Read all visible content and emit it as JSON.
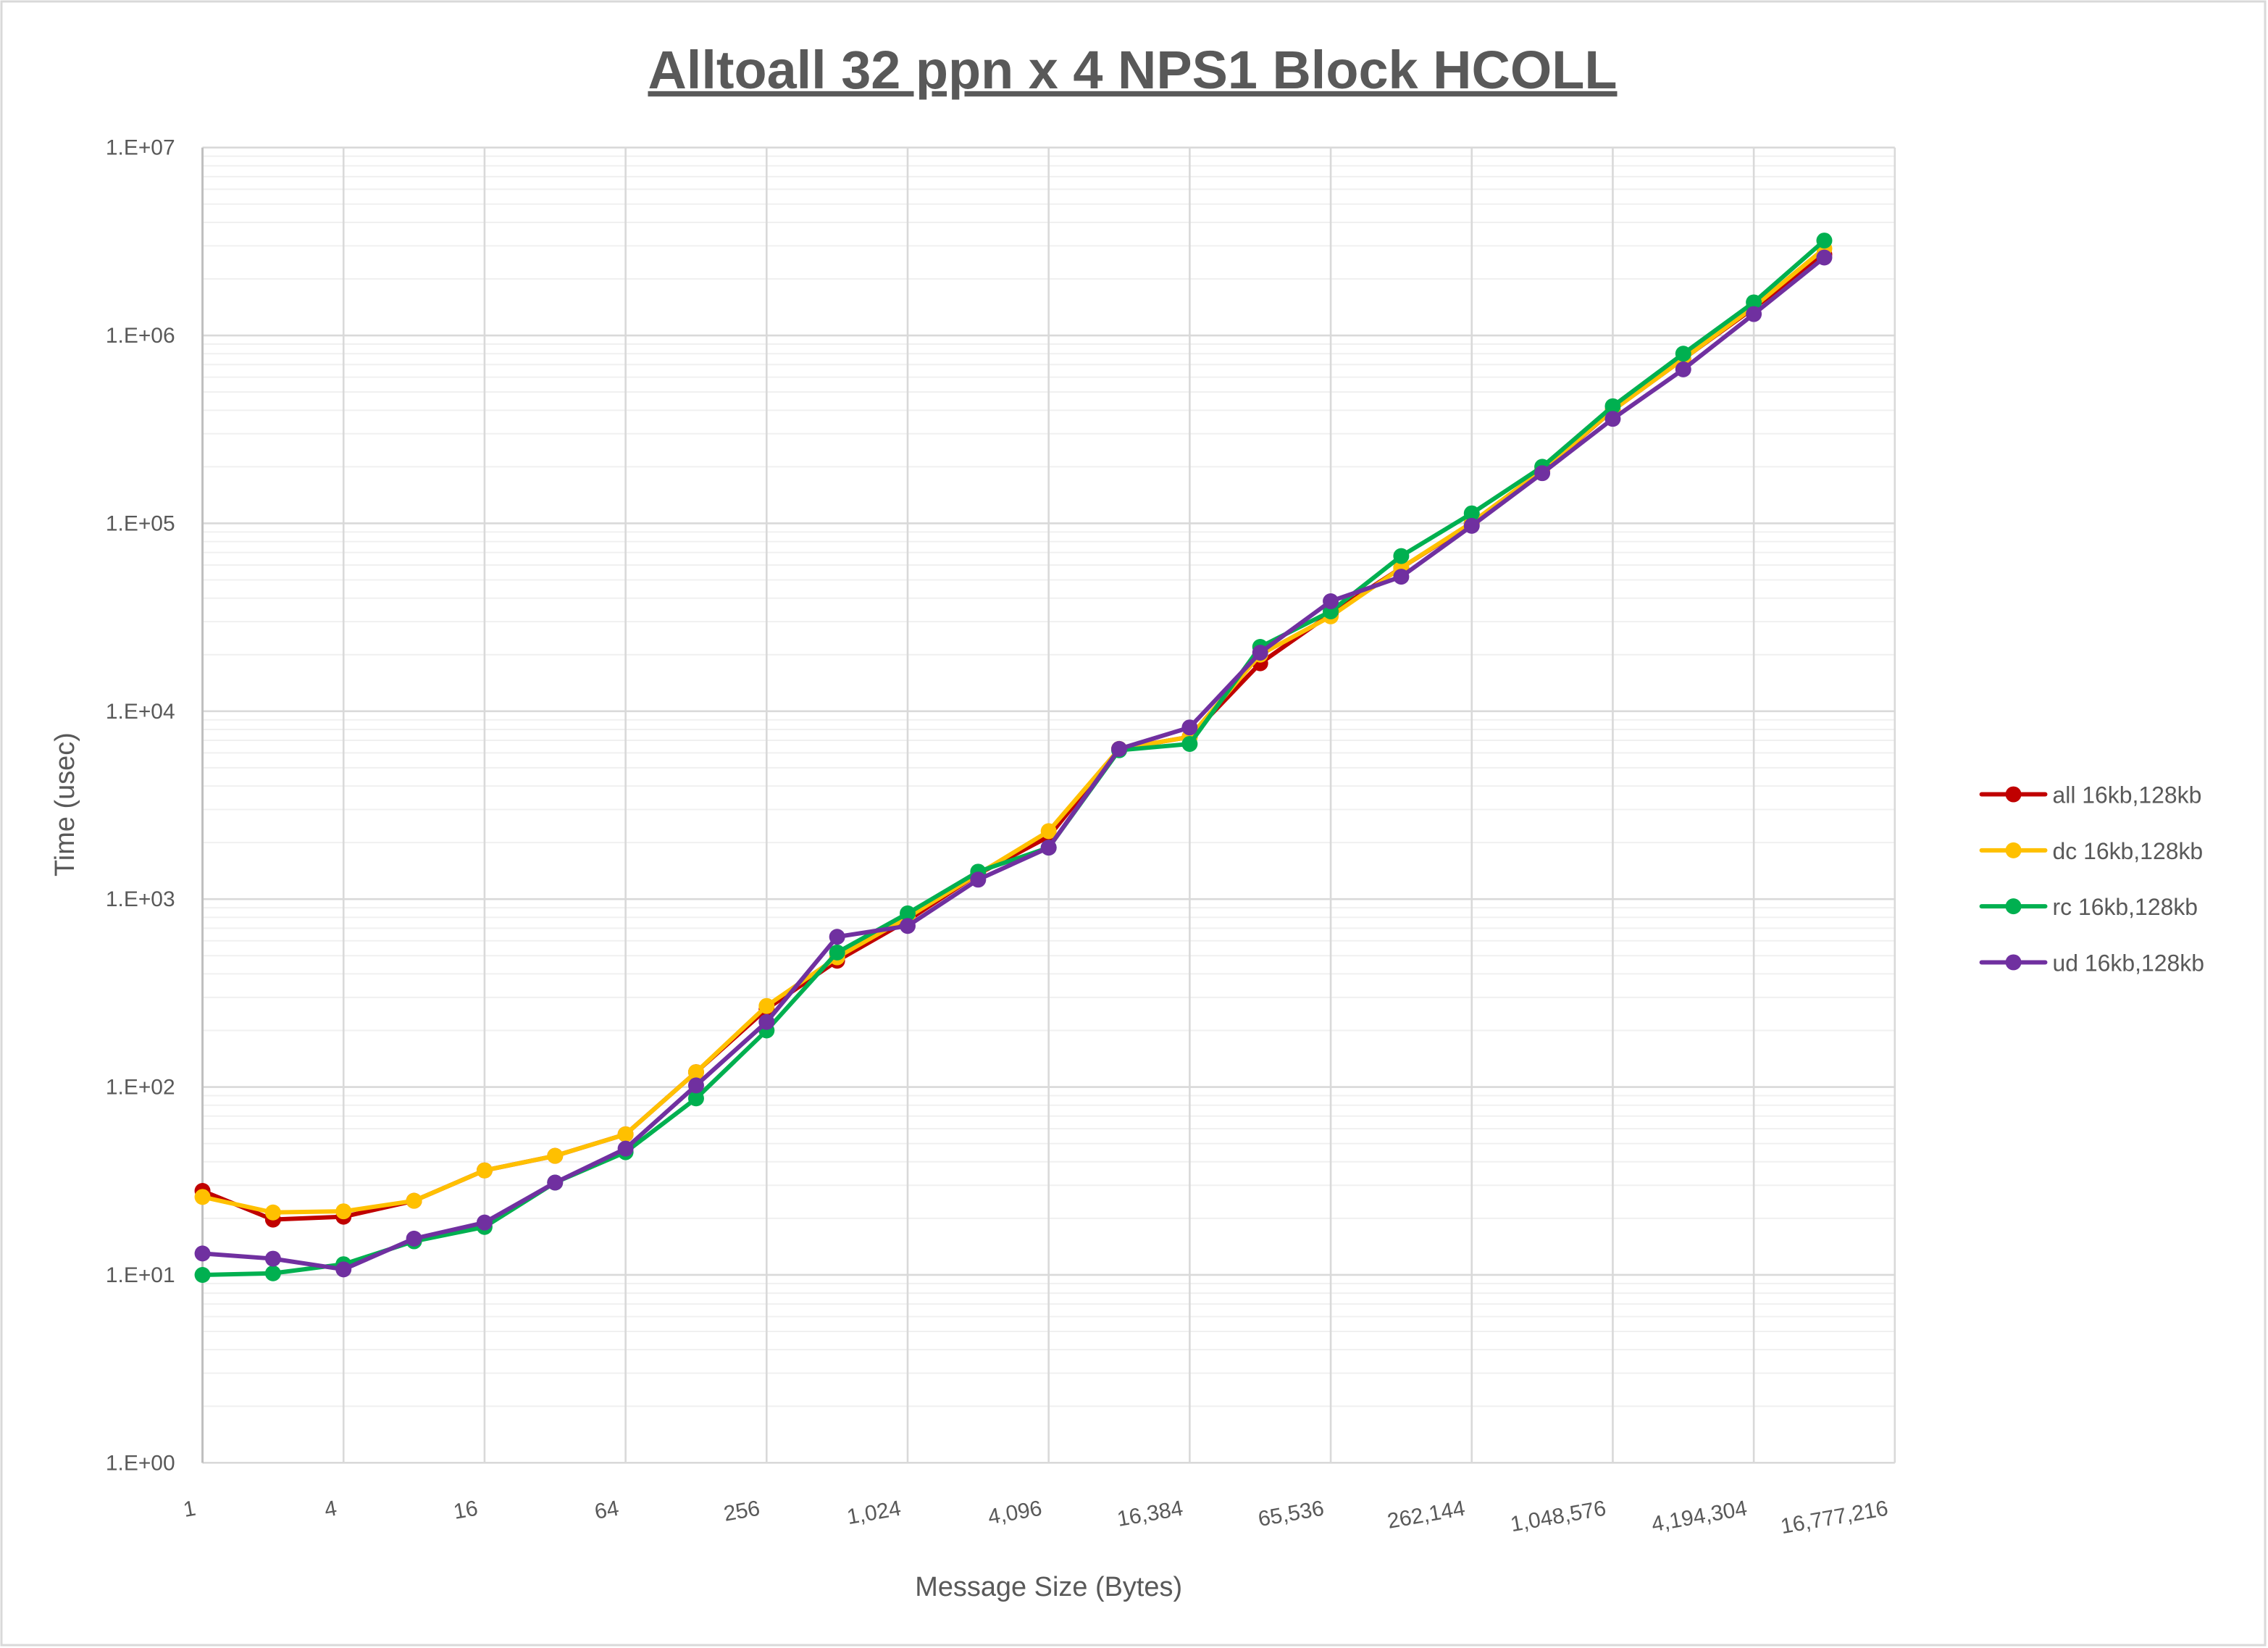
{
  "chart_data": {
    "type": "line",
    "title": "Alltoall 32 ppn x 4 NPS1 Block HCOLL",
    "xlabel": "Message Size (Bytes)",
    "ylabel": "Time (usec)",
    "yscale": "log",
    "ylim": [
      1,
      10000000
    ],
    "y_tick_labels": [
      "1.E+00",
      "1.E+01",
      "1.E+02",
      "1.E+03",
      "1.E+04",
      "1.E+05",
      "1.E+06",
      "1.E+07"
    ],
    "x_tick_labels": [
      "1",
      "4",
      "16",
      "64",
      "256",
      "1,024",
      "4,096",
      "16,384",
      "65,536",
      "262,144",
      "1,048,576",
      "4,194,304",
      "16,777,216"
    ],
    "x": [
      1,
      2,
      4,
      8,
      16,
      32,
      64,
      128,
      256,
      512,
      1024,
      2048,
      4096,
      8192,
      16384,
      32768,
      65536,
      131072,
      262144,
      524288,
      1048576,
      2097152,
      4194304,
      8388608
    ],
    "grid": "major and minor horizontal, vertical at labeled ticks",
    "legend_position": "right",
    "series": [
      {
        "name": "all 16kb,128kb",
        "color": "#C00000",
        "values": [
          28,
          19.7,
          20.4,
          24.8,
          36,
          43,
          56,
          120,
          260,
          470,
          770,
          1360,
          2150,
          6300,
          7300,
          18000,
          33000,
          58000,
          100000,
          190000,
          400000,
          750000,
          1400000,
          2700000
        ]
      },
      {
        "name": "dc 16kb,128kb",
        "color": "#FFC000",
        "values": [
          26,
          21.5,
          21.8,
          24.8,
          36,
          43,
          56,
          120,
          270,
          490,
          800,
          1360,
          2300,
          6300,
          7300,
          20000,
          32000,
          58000,
          101000,
          192000,
          400000,
          750000,
          1420000,
          2900000
        ]
      },
      {
        "name": "rc 16kb,128kb",
        "color": "#00B050",
        "values": [
          10,
          10.2,
          11.4,
          15.1,
          18,
          31,
          45,
          87,
          200,
          520,
          840,
          1400,
          1880,
          6200,
          6700,
          22000,
          34000,
          67000,
          113000,
          200000,
          420000,
          800000,
          1500000,
          3200000
        ]
      },
      {
        "name": "ud 16kb,128kb",
        "color": "#7030A0",
        "values": [
          13,
          12.2,
          10.7,
          15.6,
          19,
          31,
          47,
          102,
          222,
          630,
          720,
          1270,
          1880,
          6300,
          8200,
          20500,
          38500,
          52000,
          97000,
          185000,
          360000,
          660000,
          1300000,
          2600000
        ]
      }
    ]
  }
}
